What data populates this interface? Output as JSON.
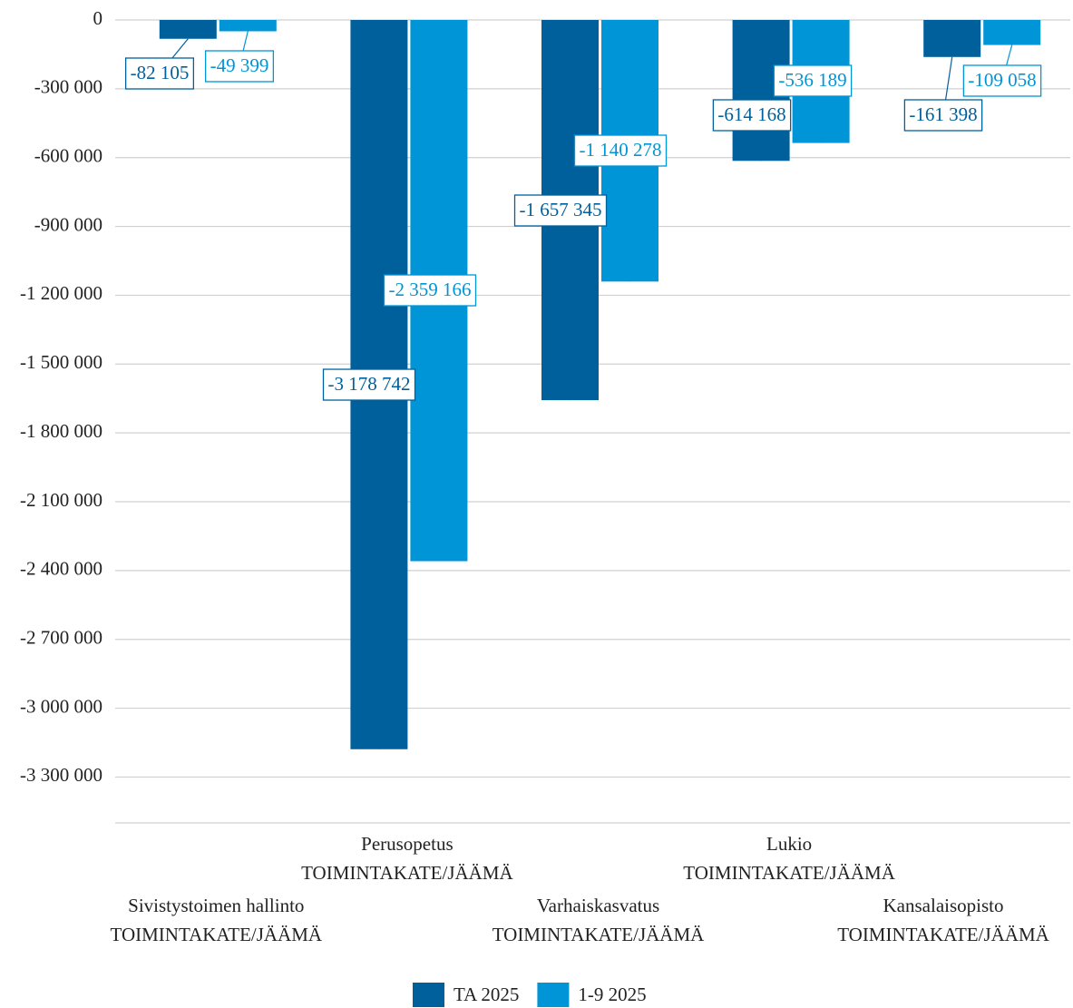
{
  "chart_data": {
    "type": "bar",
    "categories": [
      [
        "Sivistystoimen hallinto",
        "TOIMINTAKATE/JÄÄMÄ"
      ],
      [
        "Perusopetus",
        "TOIMINTAKATE/JÄÄMÄ"
      ],
      [
        "Varhaiskasvatus",
        "TOIMINTAKATE/JÄÄMÄ"
      ],
      [
        "Lukio",
        "TOIMINTAKATE/JÄÄMÄ"
      ],
      [
        "Kansalaisopisto",
        "TOIMINTAKATE/JÄÄMÄ"
      ]
    ],
    "series": [
      {
        "name": "TA 2025",
        "color": "#00609c",
        "values": [
          -82105,
          -3178742,
          -1657345,
          -614168,
          -161398
        ],
        "value_labels": [
          "-82 105",
          "-3 178 742",
          "-1 657 345",
          "-614 168",
          "-161 398"
        ]
      },
      {
        "name": "1-9 2025",
        "color": "#0095d6",
        "values": [
          -49399,
          -2359166,
          -1140278,
          -536189,
          -109058
        ],
        "value_labels": [
          "-49 399",
          "-2 359 166",
          "-1 140 278",
          "-536 189",
          "-109 058"
        ]
      }
    ],
    "ylim": [
      -3500000,
      0
    ],
    "yticks": [
      0,
      {
        "value": -300000,
        "label": "-300 000"
      },
      {
        "value": -600000,
        "label": "-600 000"
      },
      {
        "value": -900000,
        "label": "-900 000"
      },
      {
        "value": -1200000,
        "label": "-1 200 000"
      },
      {
        "value": -1500000,
        "label": "-1 500 000"
      },
      {
        "value": -1800000,
        "label": "-1 800 000"
      },
      {
        "value": -2100000,
        "label": "-2 100 000"
      },
      {
        "value": -2400000,
        "label": "-2 400 000"
      },
      {
        "value": -2700000,
        "label": "-2 700 000"
      },
      {
        "value": -3000000,
        "label": "-3 000 000"
      },
      {
        "value": -3300000,
        "label": "-3 300 000"
      }
    ],
    "grid": true,
    "legend": "bottom"
  }
}
